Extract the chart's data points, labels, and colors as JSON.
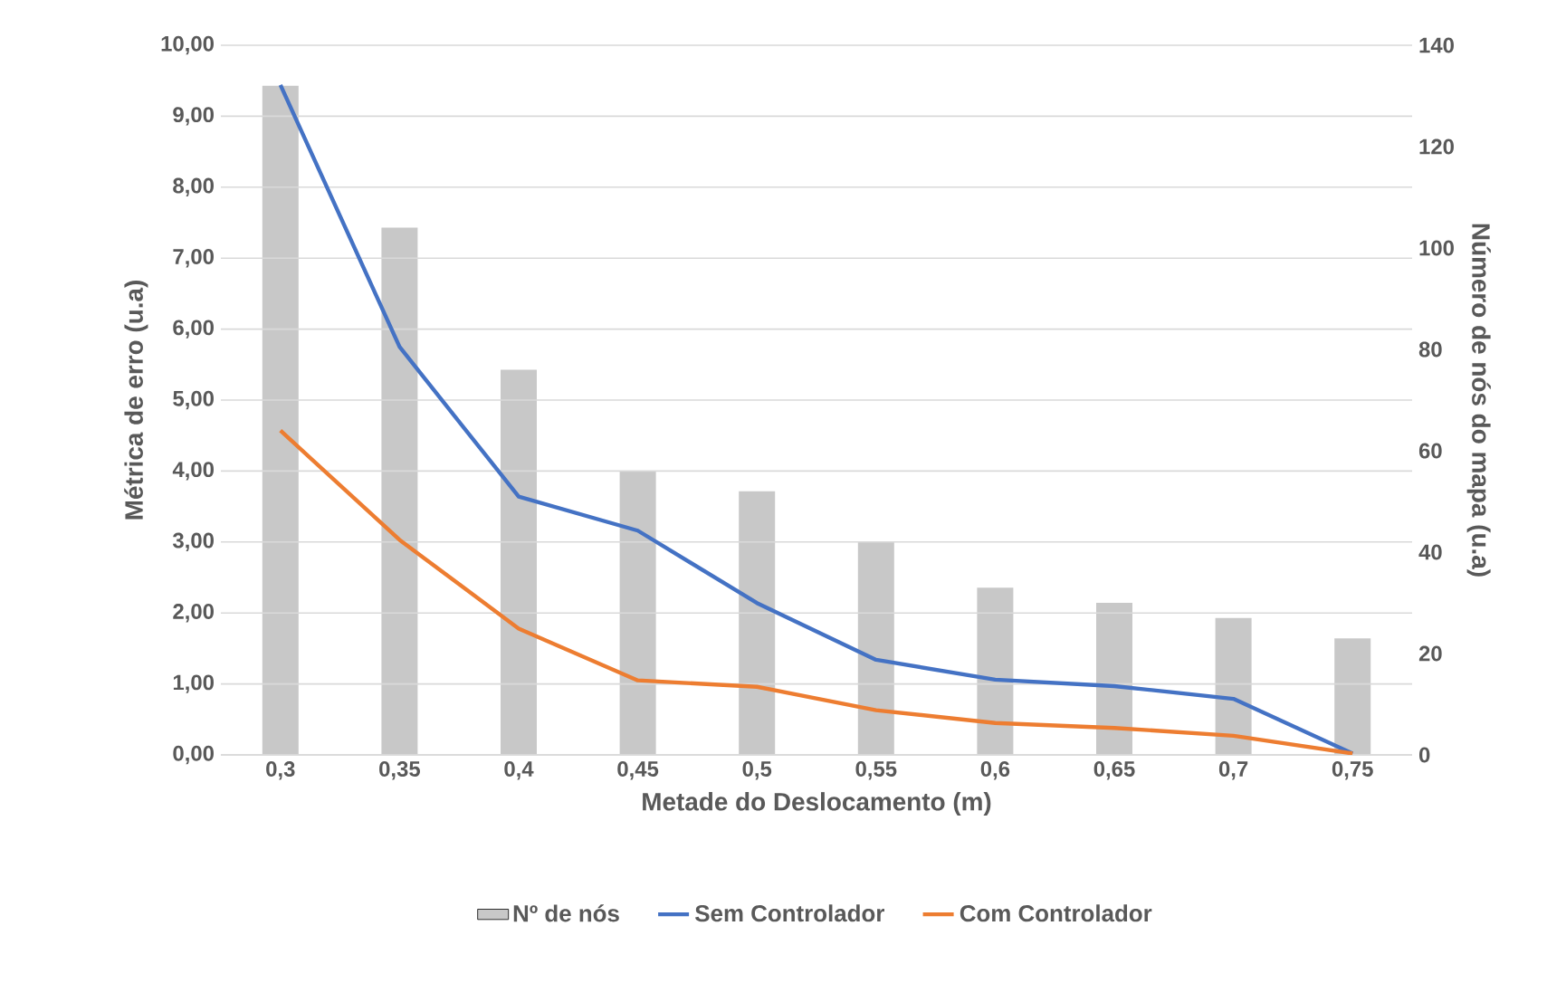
{
  "chart_data": {
    "type": "bar",
    "xlabel": "Metade do Deslocamento (m)",
    "ylabel": "Métrica de erro (u.a)",
    "y2label": "Número de nós do mapa (u.a)",
    "categories": [
      "0,3",
      "0,35",
      "0,4",
      "0,45",
      "0,5",
      "0,55",
      "0,6",
      "0,65",
      "0,7",
      "0,75"
    ],
    "series": [
      {
        "name": "Nº de nós",
        "axis": "y2",
        "color": "#c8c8c8",
        "values": [
          132,
          104,
          76,
          56,
          52,
          42,
          33,
          30,
          27,
          23
        ]
      },
      {
        "name": "Sem Controlador",
        "type": "line",
        "color": "#4472c4",
        "values": [
          9.44,
          5.75,
          3.64,
          3.16,
          2.14,
          1.34,
          1.06,
          0.97,
          0.79,
          0.02
        ]
      },
      {
        "name": "Com Controlador",
        "type": "line",
        "color": "#ed7d31",
        "values": [
          4.57,
          3.03,
          1.78,
          1.05,
          0.96,
          0.63,
          0.45,
          0.38,
          0.27,
          0.02
        ]
      }
    ],
    "ylim": [
      0,
      10
    ],
    "yticks": [
      {
        "value": 0,
        "label": "0,00"
      },
      {
        "value": 1,
        "label": "1,00"
      },
      {
        "value": 2,
        "label": "2,00"
      },
      {
        "value": 3,
        "label": "3,00"
      },
      {
        "value": 4,
        "label": "4,00"
      },
      {
        "value": 5,
        "label": "5,00"
      },
      {
        "value": 6,
        "label": "6,00"
      },
      {
        "value": 7,
        "label": "7,00"
      },
      {
        "value": 8,
        "label": "8,00"
      },
      {
        "value": 9,
        "label": "9,00"
      },
      {
        "value": 10,
        "label": "10,00"
      }
    ],
    "y2lim": [
      0,
      140
    ],
    "y2ticks": [
      0,
      20,
      40,
      60,
      80,
      100,
      120,
      140
    ],
    "grid": "y",
    "legend": "bottom",
    "marker": "none",
    "line_style": "solid"
  }
}
